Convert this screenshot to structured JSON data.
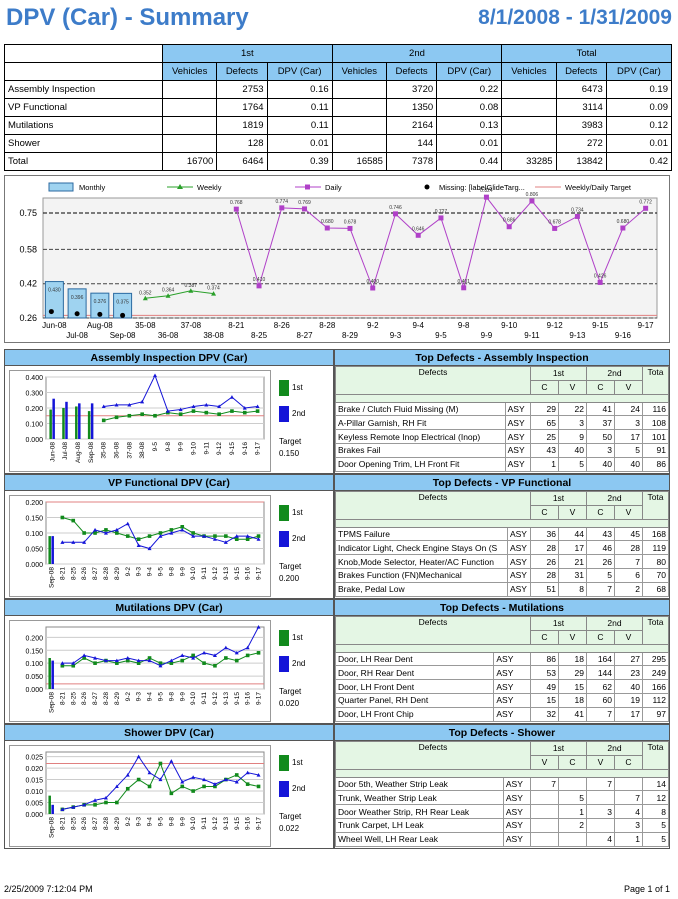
{
  "header": {
    "title": "DPV (Car) - Summary",
    "range": "8/1/2008 - 1/31/2009"
  },
  "summary": {
    "groups": [
      "1st",
      "2nd",
      "Total"
    ],
    "cols": [
      "Vehicles",
      "Defects",
      "DPV (Car)"
    ],
    "rows": [
      {
        "label": "Assembly Inspection",
        "v1": "",
        "d1": "2753",
        "p1": "0.16",
        "v2": "",
        "d2": "3720",
        "p2": "0.22",
        "vt": "",
        "dt": "6473",
        "pt": "0.19"
      },
      {
        "label": "VP Functional",
        "v1": "",
        "d1": "1764",
        "p1": "0.11",
        "v2": "",
        "d2": "1350",
        "p2": "0.08",
        "vt": "",
        "dt": "3114",
        "pt": "0.09"
      },
      {
        "label": "Mutilations",
        "v1": "",
        "d1": "1819",
        "p1": "0.11",
        "v2": "",
        "d2": "2164",
        "p2": "0.13",
        "vt": "",
        "dt": "3983",
        "pt": "0.12"
      },
      {
        "label": "Shower",
        "v1": "",
        "d1": "128",
        "p1": "0.01",
        "v2": "",
        "d2": "144",
        "p2": "0.01",
        "vt": "",
        "dt": "272",
        "pt": "0.01"
      },
      {
        "label": "Total",
        "v1": "16700",
        "d1": "6464",
        "p1": "0.39",
        "v2": "16585",
        "d2": "7378",
        "p2": "0.44",
        "vt": "33285",
        "dt": "13842",
        "pt": "0.42"
      }
    ]
  },
  "chart_data": [
    {
      "type": "bar",
      "legend": [
        "Monthly",
        "Weekly",
        "Daily",
        "Missing: [labelGlideTarg...",
        "Weekly/Daily Target"
      ],
      "legend_position": "top",
      "yticks": [
        "0.75",
        "0.58",
        "0.42",
        "0.26"
      ],
      "ylim": [
        0.26,
        0.82
      ],
      "categories": [
        "Jun-08",
        "Jul-08",
        "Aug-08",
        "Sep-08",
        "35-08",
        "36-08",
        "37-08",
        "38-08",
        "8-21",
        "8-25",
        "8-26",
        "8-27",
        "8-28",
        "8-29",
        "9-2",
        "9-3",
        "9-4",
        "9-5",
        "9-8",
        "9-9",
        "9-10",
        "9-11",
        "9-12",
        "9-13",
        "9-15",
        "9-16",
        "9-17"
      ],
      "monthly": {
        "x": [
          "Jun-08",
          "Jul-08",
          "Aug-08",
          "Sep-08"
        ],
        "values": [
          0.43,
          0.396,
          0.376,
          0.375
        ],
        "labels": [
          "0.430",
          "0.396",
          "0.376",
          "0.375"
        ]
      },
      "weekly": {
        "x": [
          "35-08",
          "36-08",
          "37-08",
          "38-08"
        ],
        "values": [
          0.352,
          0.364,
          0.387,
          0.374
        ],
        "labels": [
          "0.352",
          "0.364",
          "0.387",
          "0.374"
        ]
      },
      "daily": {
        "x": [
          "8-21",
          "8-25",
          "8-26",
          "8-27",
          "8-28",
          "8-29",
          "9-2",
          "9-3",
          "9-4",
          "9-5",
          "9-8",
          "9-9",
          "9-10",
          "9-11",
          "9-12",
          "9-13",
          "9-15",
          "9-16",
          "9-17"
        ],
        "values": [
          0.768,
          0.41,
          0.774,
          0.769,
          0.68,
          0.678,
          0.4,
          0.746,
          0.646,
          0.727,
          0.401,
          0.824,
          0.686,
          0.806,
          0.678,
          0.734,
          0.426,
          0.68,
          0.772
        ],
        "labels": [
          "0.768",
          "0.410",
          "0.774",
          "0.769",
          "0.680",
          "0.678",
          "0.400",
          "0.746",
          "0.646",
          "0.727",
          "0.401",
          "0.824",
          "0.686",
          "0.806",
          "0.678",
          "0.734",
          "0.426",
          "0.680",
          "0.772"
        ]
      },
      "missing": {
        "x": [
          "Jun-08",
          "Jul-08",
          "Aug-08",
          "Sep-08"
        ],
        "values": [
          0.29,
          0.28,
          0.277,
          0.272
        ]
      },
      "target": 0.272
    },
    {
      "type": "bar",
      "title": "Assembly Inspection DPV (Car)",
      "yticks": [
        "0.400",
        "0.300",
        "0.200",
        "0.100",
        "0.000"
      ],
      "ylim": [
        0,
        0.4
      ],
      "categories": [
        "Jun-08",
        "Jul-08",
        "Aug-08",
        "Sep-08",
        "35-08",
        "36-08",
        "37-08",
        "38-08",
        "9-5",
        "9-8",
        "9-9",
        "9-10",
        "9-11",
        "9-12",
        "9-15",
        "9-16",
        "9-17"
      ],
      "series": [
        {
          "name": "1st",
          "values": [
            0.19,
            0.2,
            0.21,
            0.18,
            0.12,
            0.14,
            0.15,
            0.16,
            0.15,
            0.17,
            0.16,
            0.18,
            0.17,
            0.16,
            0.18,
            0.17,
            0.18
          ]
        },
        {
          "name": "2nd",
          "values": [
            0.26,
            0.24,
            0.23,
            0.23,
            0.21,
            0.22,
            0.22,
            0.24,
            0.41,
            0.18,
            0.19,
            0.21,
            0.22,
            0.21,
            0.27,
            0.2,
            0.21
          ]
        }
      ],
      "target_label": "Target",
      "target_value": "0.150"
    },
    {
      "type": "bar",
      "title": "VP Functional DPV (Car)",
      "yticks": [
        "0.200",
        "0.150",
        "0.100",
        "0.050",
        "0.000"
      ],
      "ylim": [
        0,
        0.2
      ],
      "categories": [
        "Sep-08",
        "8-21",
        "8-25",
        "8-26",
        "8-27",
        "8-28",
        "8-29",
        "9-2",
        "9-3",
        "9-4",
        "9-5",
        "9-8",
        "9-9",
        "9-10",
        "9-11",
        "9-12",
        "9-13",
        "9-15",
        "9-16",
        "9-17"
      ],
      "series": [
        {
          "name": "1st",
          "values": [
            0.09,
            0.15,
            0.14,
            0.1,
            0.1,
            0.11,
            0.1,
            0.09,
            0.08,
            0.09,
            0.1,
            0.11,
            0.12,
            0.1,
            0.09,
            0.09,
            0.09,
            0.08,
            0.08,
            0.09
          ]
        },
        {
          "name": "2nd",
          "values": [
            0.09,
            0.07,
            0.07,
            0.07,
            0.11,
            0.1,
            0.11,
            0.13,
            0.06,
            0.05,
            0.09,
            0.1,
            0.11,
            0.09,
            0.09,
            0.08,
            0.07,
            0.09,
            0.09,
            0.08
          ]
        }
      ],
      "target_label": "Target",
      "target_value": "0.200"
    },
    {
      "type": "bar",
      "title": "Mutilations DPV (Car)",
      "yticks": [
        "0.200",
        "0.150",
        "0.100",
        "0.050",
        "0.000"
      ],
      "ylim": [
        0,
        0.24
      ],
      "categories": [
        "Sep-08",
        "8-21",
        "8-25",
        "8-26",
        "8-27",
        "8-28",
        "8-29",
        "9-2",
        "9-3",
        "9-4",
        "9-5",
        "9-8",
        "9-9",
        "9-10",
        "9-11",
        "9-12",
        "9-13",
        "9-15",
        "9-16",
        "9-17"
      ],
      "series": [
        {
          "name": "1st",
          "values": [
            0.12,
            0.09,
            0.09,
            0.12,
            0.1,
            0.11,
            0.1,
            0.11,
            0.1,
            0.12,
            0.1,
            0.1,
            0.11,
            0.13,
            0.1,
            0.09,
            0.12,
            0.11,
            0.13,
            0.14
          ]
        },
        {
          "name": "2nd",
          "values": [
            0.11,
            0.1,
            0.1,
            0.13,
            0.12,
            0.11,
            0.11,
            0.12,
            0.11,
            0.11,
            0.09,
            0.11,
            0.13,
            0.12,
            0.14,
            0.13,
            0.16,
            0.14,
            0.16,
            0.24
          ]
        }
      ],
      "target_label": "Target",
      "target_value": "0.020"
    },
    {
      "type": "bar",
      "title": "Shower DPV (Car)",
      "yticks": [
        "0.025",
        "0.020",
        "0.015",
        "0.010",
        "0.005",
        "0.000"
      ],
      "ylim": [
        0,
        0.027
      ],
      "categories": [
        "Sep-08",
        "8-21",
        "8-25",
        "8-26",
        "8-27",
        "8-28",
        "8-29",
        "9-2",
        "9-3",
        "9-4",
        "9-5",
        "9-8",
        "9-9",
        "9-10",
        "9-11",
        "9-12",
        "9-13",
        "9-15",
        "9-16",
        "9-17"
      ],
      "series": [
        {
          "name": "1st",
          "values": [
            0.008,
            0.002,
            0.003,
            0.004,
            0.004,
            0.005,
            0.005,
            0.011,
            0.015,
            0.012,
            0.022,
            0.009,
            0.012,
            0.01,
            0.012,
            0.012,
            0.015,
            0.017,
            0.013,
            0.012
          ]
        },
        {
          "name": "2nd",
          "values": [
            0.004,
            0.002,
            0.003,
            0.004,
            0.006,
            0.007,
            0.012,
            0.017,
            0.025,
            0.018,
            0.015,
            0.023,
            0.014,
            0.016,
            0.015,
            0.013,
            0.015,
            0.014,
            0.018,
            0.017
          ]
        }
      ],
      "target_label": "Target",
      "target_value": "0.022"
    }
  ],
  "panels": [
    {
      "defects_title": "Top Defects - Assembly Inspection",
      "col_defects": "Defects",
      "g1": "1st",
      "g2": "2nd",
      "gt": "Tota",
      "s1a": "C",
      "s1b": "V",
      "s2a": "C",
      "s2b": "V",
      "rows": [
        {
          "name": "Brake / Clutch Fluid Missing (M)",
          "area": "ASY",
          "a": "29",
          "b": "22",
          "c": "41",
          "d": "24",
          "t": "116"
        },
        {
          "name": "A-Pillar Garnish, RH Fit",
          "area": "ASY",
          "a": "65",
          "b": "3",
          "c": "37",
          "d": "3",
          "t": "108"
        },
        {
          "name": "Keyless Remote Inop Electrical (Inop)",
          "area": "ASY",
          "a": "25",
          "b": "9",
          "c": "50",
          "d": "17",
          "t": "101"
        },
        {
          "name": "Brakes Fail",
          "area": "ASY",
          "a": "43",
          "b": "40",
          "c": "3",
          "d": "5",
          "t": "91"
        },
        {
          "name": "Door Opening Trim, LH Front Fit",
          "area": "ASY",
          "a": "1",
          "b": "5",
          "c": "40",
          "d": "40",
          "t": "86"
        }
      ]
    },
    {
      "defects_title": "Top Defects - VP Functional",
      "col_defects": "Defects",
      "g1": "1st",
      "g2": "2nd",
      "gt": "Tota",
      "s1a": "C",
      "s1b": "V",
      "s2a": "C",
      "s2b": "V",
      "rows": [
        {
          "name": "TPMS Failure",
          "area": "ASY",
          "a": "36",
          "b": "44",
          "c": "43",
          "d": "45",
          "t": "168"
        },
        {
          "name": "Indicator Light, Check Engine Stays On (S",
          "area": "ASY",
          "a": "28",
          "b": "17",
          "c": "46",
          "d": "28",
          "t": "119"
        },
        {
          "name": "Knob,Mode Selector, Heater/AC Function",
          "area": "ASY",
          "a": "26",
          "b": "21",
          "c": "26",
          "d": "7",
          "t": "80"
        },
        {
          "name": "Brakes Function (FN)Mechanical",
          "area": "ASY",
          "a": "28",
          "b": "31",
          "c": "5",
          "d": "6",
          "t": "70"
        },
        {
          "name": "Brake, Pedal Low",
          "area": "ASY",
          "a": "51",
          "b": "8",
          "c": "7",
          "d": "2",
          "t": "68"
        }
      ]
    },
    {
      "defects_title": "Top Defects - Mutilations",
      "col_defects": "Defects",
      "g1": "1st",
      "g2": "2nd",
      "gt": "Tota",
      "s1a": "C",
      "s1b": "V",
      "s2a": "C",
      "s2b": "V",
      "rows": [
        {
          "name": "Door, LH Rear Dent",
          "area": "ASY",
          "a": "86",
          "b": "18",
          "c": "164",
          "d": "27",
          "t": "295"
        },
        {
          "name": "Door, RH Rear Dent",
          "area": "ASY",
          "a": "53",
          "b": "29",
          "c": "144",
          "d": "23",
          "t": "249"
        },
        {
          "name": "Door, LH Front Dent",
          "area": "ASY",
          "a": "49",
          "b": "15",
          "c": "62",
          "d": "40",
          "t": "166"
        },
        {
          "name": "Quarter Panel, RH Dent",
          "area": "ASY",
          "a": "15",
          "b": "18",
          "c": "60",
          "d": "19",
          "t": "112"
        },
        {
          "name": "Door, LH Front Chip",
          "area": "ASY",
          "a": "32",
          "b": "41",
          "c": "7",
          "d": "17",
          "t": "97"
        }
      ]
    },
    {
      "defects_title": "Top Defects - Shower",
      "col_defects": "Defects",
      "g1": "1st",
      "g2": "2nd",
      "gt": "Tota",
      "s1a": "V",
      "s1b": "C",
      "s2a": "V",
      "s2b": "C",
      "rows": [
        {
          "name": "Door 5th, Weather Strip Leak",
          "area": "ASY",
          "a": "7",
          "b": "",
          "c": "7",
          "d": "",
          "t": "14"
        },
        {
          "name": "Trunk, Weather Strip Leak",
          "area": "ASY",
          "a": "",
          "b": "5",
          "c": "",
          "d": "7",
          "t": "12"
        },
        {
          "name": "Door Weather Strip, RH Rear Leak",
          "area": "ASY",
          "a": "",
          "b": "1",
          "c": "3",
          "d": "4",
          "t": "8"
        },
        {
          "name": "Trunk Carpet, LH Leak",
          "area": "ASY",
          "a": "",
          "b": "2",
          "c": "",
          "d": "3",
          "t": "5"
        },
        {
          "name": "Wheel Well, LH Rear Leak",
          "area": "ASY",
          "a": "",
          "b": "",
          "c": "4",
          "d": "1",
          "t": "5"
        }
      ]
    }
  ],
  "footer": {
    "timestamp": "2/25/2009 7:12:04 PM",
    "page": "Page 1 of 1"
  },
  "colors": {
    "accent": "#3d7cc9",
    "header_fill": "#8cc8f2",
    "first": "#118a1c",
    "second": "#1515d8",
    "daily": "#b040c8",
    "weekly": "#2aa02a"
  }
}
